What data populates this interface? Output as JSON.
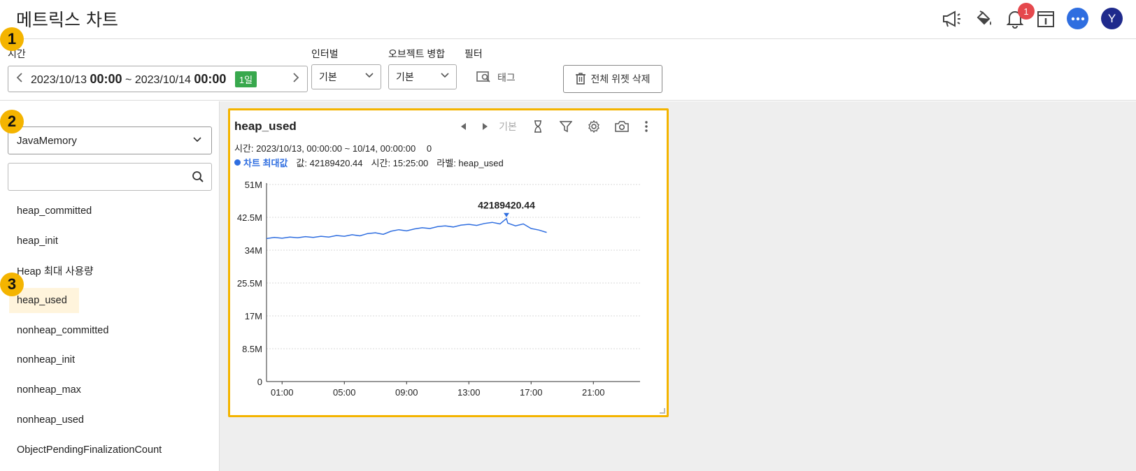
{
  "header": {
    "title": "메트릭스 차트",
    "notification_count": "1",
    "avatar_initial": "Y",
    "icons": [
      "megaphone-icon",
      "paint-bucket-icon",
      "bell-icon",
      "info-panel-icon",
      "chat-icon"
    ]
  },
  "steps": [
    "1",
    "2",
    "3"
  ],
  "toolbar": {
    "time_label": "시간",
    "time_start_date": "2023/10/13",
    "time_start_time": "00:00",
    "time_sep": "~",
    "time_end_date": "2023/10/14",
    "time_end_time": "00:00",
    "range_badge": "1일",
    "interval_label": "인터벌",
    "interval_value": "기본",
    "merge_label": "오브젝트 병합",
    "merge_value": "기본",
    "filter_label": "필터",
    "tag_button": "태그",
    "delete_all_button": "전체 위젯 삭제"
  },
  "sidebar": {
    "category": "JavaMemory",
    "search_placeholder": "",
    "metrics": [
      {
        "label": "heap_committed",
        "active": false
      },
      {
        "label": "heap_init",
        "active": false
      },
      {
        "label": "Heap 최대 사용량",
        "active": false
      },
      {
        "label": "heap_used",
        "active": true
      },
      {
        "label": "nonheap_committed",
        "active": false
      },
      {
        "label": "nonheap_init",
        "active": false
      },
      {
        "label": "nonheap_max",
        "active": false
      },
      {
        "label": "nonheap_used",
        "active": false
      },
      {
        "label": "ObjectPendingFinalizationCount",
        "active": false
      }
    ]
  },
  "widget": {
    "title": "heap_used",
    "mode_label": "기본",
    "info_time": "시간: 2023/10/13, 00:00:00 ~ 10/14, 00:00:00",
    "info_zero": "0",
    "legend_max": "차트 최대값",
    "legend_value": "값: 42189420.44",
    "legend_time": "시간: 15:25:00",
    "legend_label": "라벨: heap_used",
    "accent": "#f4b400",
    "line_color": "#2f6ee0"
  },
  "chart_data": {
    "type": "line",
    "title": "",
    "xlabel": "",
    "ylabel": "",
    "x_ticks": [
      "01:00",
      "05:00",
      "09:00",
      "13:00",
      "17:00",
      "21:00"
    ],
    "y_ticks": [
      "0",
      "8.5M",
      "17M",
      "25.5M",
      "34M",
      "42.5M",
      "51M"
    ],
    "ylim": [
      0,
      51000000
    ],
    "xlim_hours": [
      0,
      24
    ],
    "max_annotation": {
      "label": "42189420.44",
      "x": "15:25",
      "y": 42189420.44
    },
    "grid": true,
    "series": [
      {
        "x": [
          "00:00",
          "00:30",
          "01:00",
          "01:30",
          "02:00",
          "02:30",
          "03:00",
          "03:30",
          "04:00",
          "04:30",
          "05:00",
          "05:30",
          "06:00",
          "06:30",
          "07:00",
          "07:30",
          "08:00",
          "08:30",
          "09:00",
          "09:30",
          "10:00",
          "10:30",
          "11:00",
          "11:30",
          "12:00",
          "12:30",
          "13:00",
          "13:30",
          "14:00",
          "14:30",
          "15:00",
          "15:25",
          "15:30",
          "16:00",
          "16:30",
          "17:00",
          "17:30",
          "18:00"
        ],
        "values": [
          37000000,
          37300000,
          37100000,
          37400000,
          37200000,
          37500000,
          37300000,
          37600000,
          37400000,
          37800000,
          37600000,
          38000000,
          37700000,
          38300000,
          38500000,
          38100000,
          38900000,
          39300000,
          39000000,
          39500000,
          39800000,
          39600000,
          40100000,
          40300000,
          40000000,
          40500000,
          40700000,
          40400000,
          40900000,
          41200000,
          40800000,
          42189420.44,
          41000000,
          40300000,
          40800000,
          39600000,
          39200000,
          38600000
        ]
      }
    ]
  }
}
